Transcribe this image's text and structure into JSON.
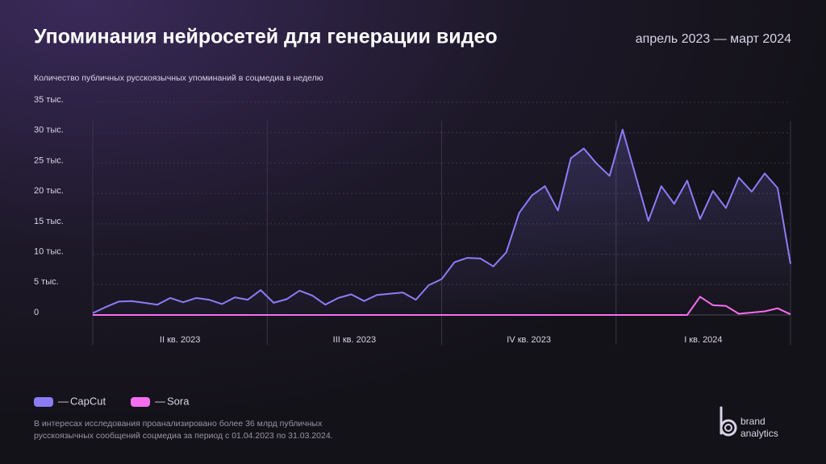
{
  "chart_data": {
    "type": "line",
    "title": "Упоминания нейросетей для генерации видео",
    "period": "апрель 2023 — март 2024",
    "subtitle": "Количество публичных русскоязычных упоминаний в соцмедиа в неделю",
    "quarters": [
      "II кв. 2023",
      "III кв. 2023",
      "IV кв. 2023",
      "I кв. 2024"
    ],
    "ylim": [
      0,
      35000
    ],
    "yticks": [
      0,
      {
        "value": 5000,
        "label": "5 тыс."
      },
      {
        "value": 10000,
        "label": "10 тыс."
      },
      {
        "value": 15000,
        "label": "15 тыс."
      },
      {
        "value": 20000,
        "label": "20 тыс."
      },
      {
        "value": 25000,
        "label": "25 тыс."
      },
      {
        "value": 30000,
        "label": "30 тыс."
      },
      {
        "value": 35000,
        "label": "35 тыс."
      }
    ],
    "grid": true,
    "legend_dash": "—",
    "series": [
      {
        "name": "CapCut",
        "color": "#8b7cf6",
        "values": [
          300,
          1300,
          2200,
          2300,
          2000,
          1700,
          2800,
          2100,
          2800,
          2500,
          1800,
          2900,
          2500,
          4100,
          2000,
          2600,
          4000,
          3200,
          1700,
          2800,
          3400,
          2300,
          3300,
          3500,
          3700,
          2500,
          4900,
          5900,
          8700,
          9400,
          9300,
          8000,
          10300,
          16800,
          19700,
          21200,
          17200,
          25800,
          27400,
          24900,
          22900,
          30500,
          23000,
          15500,
          21200,
          18300,
          22100,
          15800,
          20400,
          17600,
          22600,
          20300,
          23300,
          20900,
          8400
        ]
      },
      {
        "name": "Sora",
        "color": "#f66ef0",
        "values": [
          0,
          0,
          0,
          0,
          0,
          0,
          0,
          0,
          0,
          0,
          0,
          0,
          0,
          0,
          0,
          0,
          0,
          0,
          0,
          0,
          0,
          0,
          0,
          0,
          0,
          0,
          0,
          0,
          0,
          0,
          0,
          0,
          0,
          0,
          0,
          0,
          0,
          0,
          0,
          0,
          0,
          0,
          0,
          0,
          0,
          0,
          0,
          3000,
          1600,
          1500,
          200,
          400,
          600,
          1100,
          100
        ]
      }
    ],
    "footnote": [
      "В интересах исследования проанализировано более 36 млрд публичных",
      "русскоязычных сообщений соцмедиа за период с 01.04.2023 по 31.03.2024."
    ],
    "brand": [
      "brand",
      "analytics"
    ]
  }
}
